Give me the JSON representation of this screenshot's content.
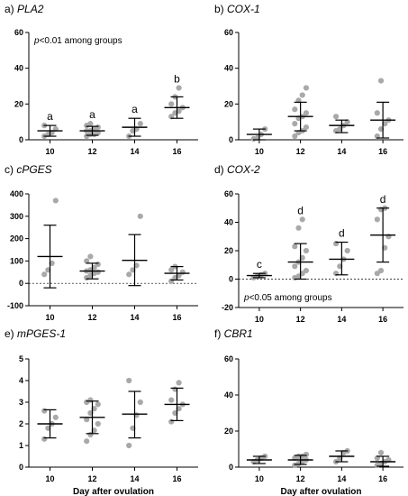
{
  "chart_data": [
    {
      "type": "scatter",
      "label": "a)",
      "gene": "PLA2",
      "categories": [
        "10",
        "12",
        "14",
        "16"
      ],
      "ylim": [
        0,
        60
      ],
      "yticks": [
        0,
        20,
        40,
        60
      ],
      "note": {
        "prefix": "p",
        "text": "<0.01 among groups",
        "position": "top"
      },
      "xlabel": "",
      "groups": [
        {
          "x": "10",
          "points": [
            2,
            3,
            4,
            6,
            8
          ],
          "mean": 5,
          "sd_low": 2,
          "sd_high": 8,
          "letter": "a"
        },
        {
          "x": "12",
          "points": [
            2,
            3,
            3,
            4,
            5,
            5,
            6,
            7,
            8,
            9
          ],
          "mean": 5,
          "sd_low": 2.5,
          "sd_high": 7.5,
          "letter": "a"
        },
        {
          "x": "14",
          "points": [
            2,
            5,
            6,
            9
          ],
          "mean": 7,
          "sd_low": 2,
          "sd_high": 12,
          "letter": "a"
        },
        {
          "x": "16",
          "points": [
            13,
            15,
            16,
            18,
            20,
            24,
            29
          ],
          "mean": 18,
          "sd_low": 12,
          "sd_high": 24,
          "letter": "b"
        }
      ]
    },
    {
      "type": "scatter",
      "label": "b)",
      "gene": "COX-1",
      "categories": [
        "10",
        "12",
        "14",
        "16"
      ],
      "ylim": [
        0,
        60
      ],
      "yticks": [
        0,
        20,
        40,
        60
      ],
      "xlabel": "",
      "groups": [
        {
          "x": "10",
          "points": [
            0.5,
            1,
            3,
            6
          ],
          "mean": 3,
          "sd_low": 0,
          "sd_high": 6
        },
        {
          "x": "12",
          "points": [
            2,
            4,
            5,
            7,
            9,
            12,
            13,
            15,
            17,
            22,
            25,
            29
          ],
          "mean": 13,
          "sd_low": 5,
          "sd_high": 21
        },
        {
          "x": "14",
          "points": [
            5,
            6,
            8,
            10,
            13
          ],
          "mean": 8,
          "sd_low": 4,
          "sd_high": 11
        },
        {
          "x": "16",
          "points": [
            2,
            6,
            9,
            11,
            15,
            33
          ],
          "mean": 11,
          "sd_low": 1,
          "sd_high": 21
        }
      ]
    },
    {
      "type": "scatter",
      "label": "c)",
      "gene": "cPGES",
      "categories": [
        "10",
        "12",
        "14",
        "16"
      ],
      "ylim": [
        -100,
        400
      ],
      "yticks": [
        -100,
        0,
        100,
        200,
        300,
        400
      ],
      "dashed_zero": true,
      "xlabel": "",
      "groups": [
        {
          "x": "10",
          "points": [
            40,
            60,
            90,
            370
          ],
          "mean": 120,
          "sd_low": -20,
          "sd_high": 260
        },
        {
          "x": "12",
          "points": [
            25,
            35,
            45,
            50,
            55,
            60,
            70,
            85,
            100,
            120
          ],
          "mean": 55,
          "sd_low": 20,
          "sd_high": 90
        },
        {
          "x": "14",
          "points": [
            40,
            60,
            80,
            300
          ],
          "mean": 103,
          "sd_low": -10,
          "sd_high": 218
        },
        {
          "x": "16",
          "points": [
            10,
            25,
            35,
            50,
            60,
            75
          ],
          "mean": 45,
          "sd_low": 15,
          "sd_high": 75
        }
      ]
    },
    {
      "type": "scatter",
      "label": "d)",
      "gene": "COX-2",
      "categories": [
        "10",
        "12",
        "14",
        "16"
      ],
      "ylim": [
        -20,
        60
      ],
      "yticks": [
        -20,
        0,
        20,
        40,
        60
      ],
      "dashed_zero": true,
      "note": {
        "prefix": "p",
        "text": "<0.05 among groups",
        "position": "bottom"
      },
      "xlabel": "",
      "groups": [
        {
          "x": "10",
          "points": [
            1,
            2,
            3,
            4
          ],
          "mean": 2.5,
          "sd_low": 1,
          "sd_high": 4,
          "letter": "c"
        },
        {
          "x": "12",
          "points": [
            1,
            2,
            4,
            6,
            9,
            12,
            15,
            20,
            23,
            36,
            42
          ],
          "mean": 12,
          "sd_low": 0,
          "sd_high": 25,
          "letter": "d"
        },
        {
          "x": "14",
          "points": [
            4,
            9,
            14,
            20,
            25
          ],
          "mean": 14,
          "sd_low": 3,
          "sd_high": 26,
          "letter": "d"
        },
        {
          "x": "16",
          "points": [
            4,
            6,
            22,
            30,
            42,
            49,
            50
          ],
          "mean": 31,
          "sd_low": 12,
          "sd_high": 50,
          "letter": "d"
        }
      ]
    },
    {
      "type": "scatter",
      "label": "e)",
      "gene": "mPGES-1",
      "categories": [
        "10",
        "12",
        "14",
        "16"
      ],
      "ylim": [
        0,
        5
      ],
      "yticks": [
        0,
        1,
        2,
        3,
        4,
        5
      ],
      "xlabel": "Day after ovulation",
      "groups": [
        {
          "x": "10",
          "points": [
            1.3,
            1.8,
            2.0,
            2.3,
            2.6
          ],
          "mean": 2.0,
          "sd_low": 1.35,
          "sd_high": 2.65
        },
        {
          "x": "12",
          "points": [
            1.2,
            1.5,
            1.7,
            2.0,
            2.2,
            2.5,
            2.7,
            2.9,
            3.0,
            3.1
          ],
          "mean": 2.3,
          "sd_low": 1.55,
          "sd_high": 3.05
        },
        {
          "x": "14",
          "points": [
            1.0,
            1.8,
            2.4,
            3.0,
            4.0
          ],
          "mean": 2.45,
          "sd_low": 1.35,
          "sd_high": 3.5
        },
        {
          "x": "16",
          "points": [
            2.1,
            2.5,
            2.7,
            2.9,
            3.1,
            3.6,
            3.9
          ],
          "mean": 2.9,
          "sd_low": 2.15,
          "sd_high": 3.65
        }
      ]
    },
    {
      "type": "scatter",
      "label": "f)",
      "gene": "CBR1",
      "categories": [
        "10",
        "12",
        "14",
        "16"
      ],
      "ylim": [
        0,
        60
      ],
      "yticks": [
        0,
        20,
        40,
        60
      ],
      "xlabel": "Day after ovulation",
      "groups": [
        {
          "x": "10",
          "points": [
            3,
            4,
            5,
            6
          ],
          "mean": 4,
          "sd_low": 2,
          "sd_high": 6
        },
        {
          "x": "12",
          "points": [
            1,
            2,
            3,
            4,
            5,
            6,
            6,
            7
          ],
          "mean": 4,
          "sd_low": 1.5,
          "sd_high": 6.5
        },
        {
          "x": "14",
          "points": [
            3,
            5,
            8,
            9
          ],
          "mean": 6,
          "sd_low": 3,
          "sd_high": 9
        },
        {
          "x": "16",
          "points": [
            1,
            2,
            3,
            4,
            5,
            8
          ],
          "mean": 3,
          "sd_low": 0.5,
          "sd_high": 6
        }
      ]
    }
  ]
}
